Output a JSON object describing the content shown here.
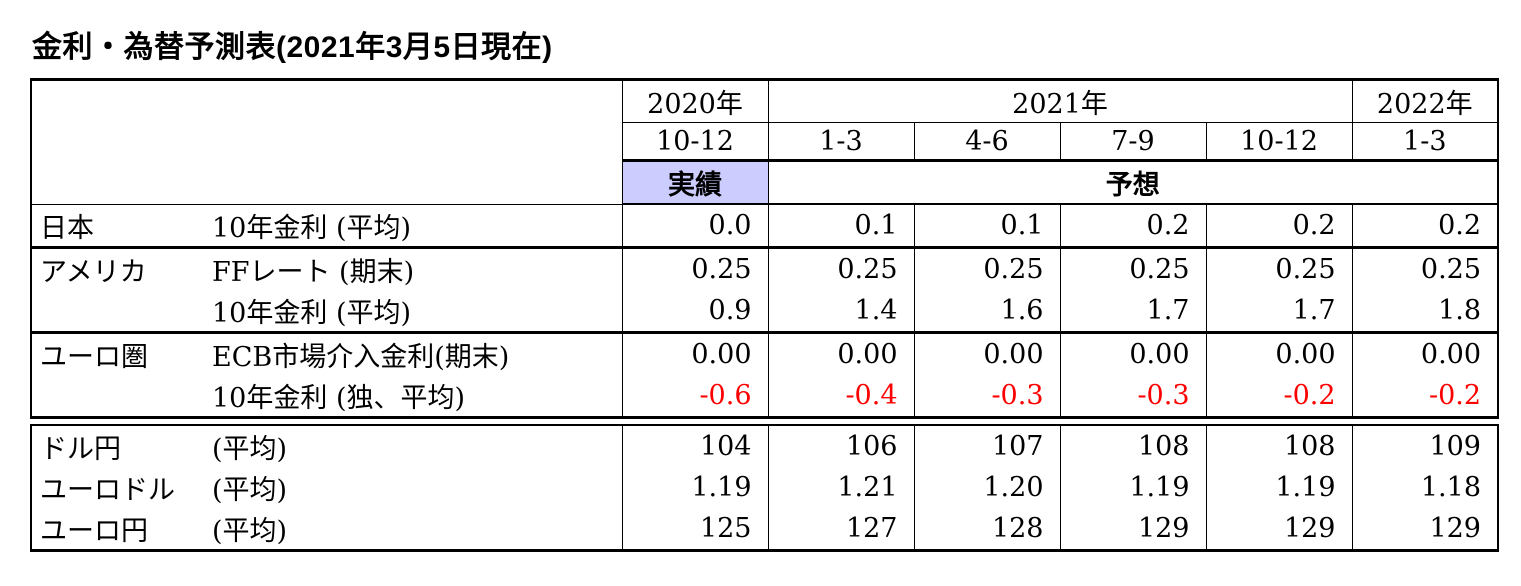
{
  "title": "金利・為替予測表(2021年3月5日現在)",
  "colors": {
    "actual_bg": "#ccccff",
    "negative_text": "#ff0000",
    "border": "#000000"
  },
  "table1": {
    "years": [
      {
        "label": "2020年",
        "span": 1
      },
      {
        "label": "2021年",
        "span": 4
      },
      {
        "label": "2022年",
        "span": 1
      }
    ],
    "quarters": [
      "10-12",
      "1-3",
      "4-6",
      "7-9",
      "10-12",
      "1-3"
    ],
    "actual_label": "実績",
    "forecast_label": "予想",
    "rows": [
      {
        "region": "日本",
        "indicator": "10年金利 (平均)",
        "values": [
          "0.0",
          "0.1",
          "0.1",
          "0.2",
          "0.2",
          "0.2"
        ]
      },
      {
        "region": "アメリカ",
        "indicator": "FFレート (期末)",
        "values": [
          "0.25",
          "0.25",
          "0.25",
          "0.25",
          "0.25",
          "0.25"
        ]
      },
      {
        "region": "",
        "indicator": "10年金利 (平均)",
        "values": [
          "0.9",
          "1.4",
          "1.6",
          "1.7",
          "1.7",
          "1.8"
        ]
      },
      {
        "region": "ユーロ圏",
        "indicator": "ECB市場介入金利(期末)",
        "values": [
          "0.00",
          "0.00",
          "0.00",
          "0.00",
          "0.00",
          "0.00"
        ]
      },
      {
        "region": "",
        "indicator": "10年金利 (独、平均)",
        "values": [
          "-0.6",
          "-0.4",
          "-0.3",
          "-0.3",
          "-0.2",
          "-0.2"
        ]
      }
    ]
  },
  "table2": {
    "rows": [
      {
        "pair": "ドル円",
        "indicator": "(平均)",
        "values": [
          "104",
          "106",
          "107",
          "108",
          "108",
          "109"
        ]
      },
      {
        "pair": "ユーロドル",
        "indicator": "(平均)",
        "values": [
          "1.19",
          "1.21",
          "1.20",
          "1.19",
          "1.19",
          "1.18"
        ]
      },
      {
        "pair": "ユーロ円",
        "indicator": "(平均)",
        "values": [
          "125",
          "127",
          "128",
          "129",
          "129",
          "129"
        ]
      }
    ]
  }
}
